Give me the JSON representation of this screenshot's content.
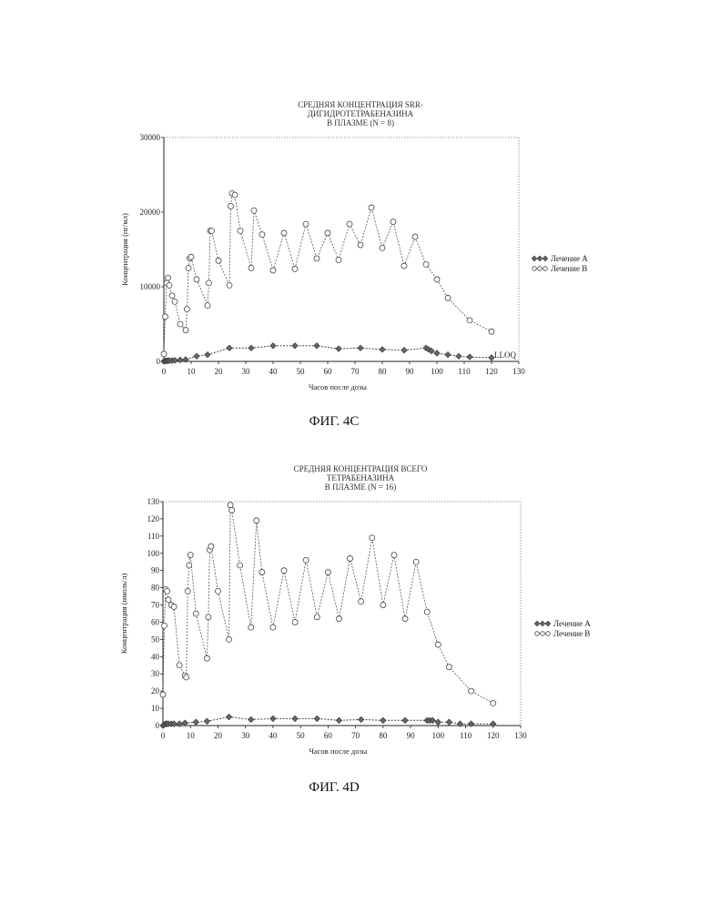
{
  "chart_data": [
    {
      "type": "line",
      "title_lines": [
        "СРЕДНЯЯ КОНЦЕНТРАЦИЯ SRR-",
        "ДИГИДРОТЕТРАБЕНАЗИНА",
        "В ПЛАЗМЕ (N = 8)"
      ],
      "xlabel": "Часов после дозы",
      "ylabel": "Концентрация (пг/мл)",
      "xlim": [
        0,
        130
      ],
      "ylim": [
        0,
        30000
      ],
      "xticks": [
        0,
        10,
        20,
        30,
        40,
        50,
        60,
        70,
        80,
        90,
        100,
        110,
        120,
        130
      ],
      "yticks": [
        0,
        10000,
        20000,
        30000
      ],
      "annotation": "LLOQ",
      "caption": "ФИГ. 4С",
      "legend": [
        "Лечение А",
        "Лечение В"
      ],
      "series": [
        {
          "name": "Лечение А",
          "x": [
            0,
            0.5,
            1,
            1.5,
            2,
            3,
            4,
            6,
            8,
            12,
            16,
            24,
            32,
            40,
            48,
            56,
            64,
            72,
            80,
            88,
            96,
            97,
            98,
            100,
            104,
            108,
            112,
            120
          ],
          "y": [
            0,
            50,
            80,
            100,
            100,
            120,
            150,
            200,
            250,
            700,
            900,
            1800,
            1800,
            2100,
            2100,
            2100,
            1700,
            1800,
            1600,
            1500,
            1800,
            1600,
            1400,
            1100,
            900,
            700,
            600,
            500
          ]
        },
        {
          "name": "Лечение В",
          "x": [
            0,
            0.5,
            1,
            1.5,
            2,
            3,
            4,
            6,
            8,
            8.5,
            9,
            9.5,
            10,
            12,
            16,
            16.5,
            17,
            17.5,
            20,
            24,
            24.5,
            25,
            26,
            28,
            32,
            33,
            36,
            40,
            44,
            48,
            52,
            56,
            60,
            64,
            68,
            72,
            76,
            80,
            84,
            88,
            92,
            96,
            100,
            104,
            112,
            120
          ],
          "y": [
            1000,
            6000,
            10500,
            11200,
            10200,
            8800,
            8000,
            5000,
            4200,
            7000,
            12500,
            13800,
            14000,
            11000,
            7500,
            10500,
            17500,
            17500,
            13500,
            10200,
            20800,
            22500,
            22300,
            17500,
            12500,
            20200,
            17000,
            12200,
            17200,
            12400,
            18400,
            13800,
            17200,
            13600,
            18400,
            15600,
            20600,
            15200,
            18700,
            12800,
            16700,
            13000,
            11000,
            8500,
            5500,
            4000
          ]
        }
      ]
    },
    {
      "type": "line",
      "title_lines": [
        "СРЕДНЯЯ КОНЦЕНТРАЦИЯ ВСЕГО",
        "ТЕТРАБЕНАЗИНА",
        "В ПЛАЗМЕ (N = 16)"
      ],
      "xlabel": "Часов после дозы",
      "ylabel": "Концентрация (нмоль/л)",
      "xlim": [
        0,
        130
      ],
      "ylim": [
        0,
        130
      ],
      "xticks": [
        0,
        10,
        20,
        30,
        40,
        50,
        60,
        70,
        80,
        90,
        100,
        110,
        120,
        130
      ],
      "yticks": [
        0,
        10,
        20,
        30,
        40,
        50,
        60,
        70,
        80,
        90,
        100,
        110,
        120,
        130
      ],
      "caption": "ФИГ. 4D",
      "legend": [
        "Лечение А",
        "Лечение В"
      ],
      "series": [
        {
          "name": "Лечение А",
          "x": [
            0,
            0.5,
            1,
            1.5,
            2,
            3,
            4,
            6,
            8,
            12,
            16,
            24,
            32,
            40,
            48,
            56,
            64,
            72,
            80,
            88,
            96,
            97,
            98,
            100,
            104,
            108,
            112,
            120
          ],
          "y": [
            0,
            0.5,
            1,
            1,
            1,
            1,
            1,
            1,
            1.5,
            2,
            2.5,
            5,
            3.5,
            4,
            4,
            4,
            3,
            3.5,
            3,
            3,
            3,
            3,
            3,
            2,
            2,
            1,
            1,
            1
          ]
        },
        {
          "name": "Лечение В",
          "x": [
            0,
            0.5,
            1,
            1.5,
            2,
            3,
            4,
            6,
            8,
            8.5,
            9,
            9.5,
            10,
            12,
            16,
            16.5,
            17,
            17.5,
            20,
            24,
            24.5,
            25,
            28,
            32,
            34,
            36,
            40,
            44,
            48,
            52,
            56,
            60,
            64,
            68,
            72,
            76,
            80,
            84,
            88,
            92,
            96,
            100,
            104,
            112,
            120
          ],
          "y": [
            18,
            58,
            79,
            78,
            73,
            70,
            69,
            35,
            29,
            28,
            78,
            93,
            99,
            65,
            39,
            63,
            102,
            104,
            78,
            50,
            128,
            125,
            93,
            57,
            119,
            89,
            57,
            90,
            60,
            96,
            63,
            89,
            62,
            97,
            72,
            109,
            70,
            99,
            62,
            95,
            66,
            47,
            34,
            20,
            13
          ]
        }
      ]
    }
  ]
}
